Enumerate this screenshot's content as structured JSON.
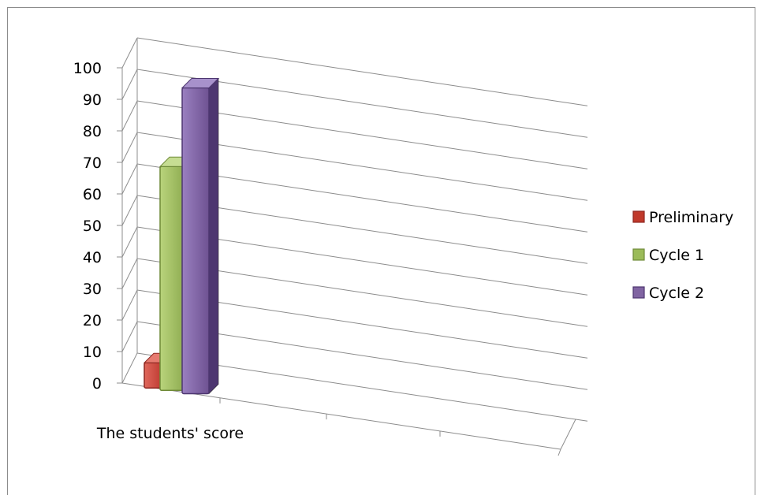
{
  "chart_data": {
    "type": "bar",
    "categories": [
      "The students' score"
    ],
    "series": [
      {
        "name": "Preliminary",
        "values": [
          8
        ],
        "color": "#c0392b"
      },
      {
        "name": "Cycle 1",
        "values": [
          71
        ],
        "color": "#9bbb59"
      },
      {
        "name": "Cycle 2",
        "values": [
          97
        ],
        "color": "#8064a2"
      }
    ],
    "ylim": [
      0,
      100
    ],
    "yticks": [
      0,
      10,
      20,
      30,
      40,
      50,
      60,
      70,
      80,
      90,
      100
    ],
    "grid": true,
    "legend": "right",
    "style": "3d-column"
  }
}
